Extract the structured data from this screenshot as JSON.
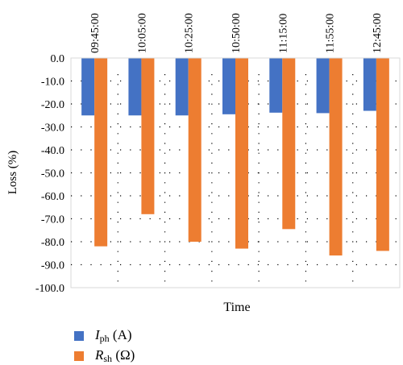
{
  "chart_data": {
    "type": "bar",
    "categories": [
      "09:45:00",
      "10:05:00",
      "10:25:00",
      "10:50:00",
      "11:15:00",
      "11:55:00",
      "12:45:00"
    ],
    "series": [
      {
        "name": "Iph (A)",
        "color": "#4472C4",
        "values": [
          -25.0,
          -25.0,
          -25.0,
          -24.5,
          -23.8,
          -24.0,
          -23.0
        ]
      },
      {
        "name": "Rsh (Ω)",
        "color": "#ED7D31",
        "values": [
          -82.0,
          -68.0,
          -80.0,
          -83.0,
          -74.5,
          -86.0,
          -84.0
        ]
      }
    ],
    "title": "",
    "xlabel": "Time",
    "ylabel": "Loss (%)",
    "ylim": [
      -100,
      0
    ],
    "yticks": [
      0,
      -10,
      -20,
      -30,
      -40,
      -50,
      -60,
      -70,
      -80,
      -90,
      -100
    ],
    "ytick_labels": [
      "0.0",
      "-10.0",
      "-20.0",
      "-30.0",
      "-40.0",
      "-50.0",
      "-60.0",
      "-70.0",
      "-80.0",
      "-90.0",
      "-100.0"
    ],
    "grid": "dotted",
    "legend_position": "bottom-left",
    "legend": [
      {
        "label_main": "I",
        "label_sub": "ph",
        "label_unit": " (A)"
      },
      {
        "label_main": "R",
        "label_sub": "sh",
        "label_unit": " (Ω)"
      }
    ]
  }
}
